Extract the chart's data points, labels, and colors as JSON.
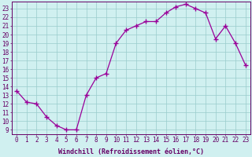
{
  "x": [
    0,
    1,
    2,
    3,
    4,
    5,
    6,
    7,
    8,
    9,
    10,
    11,
    12,
    13,
    14,
    15,
    16,
    17,
    18,
    19,
    20,
    21,
    22,
    23
  ],
  "y": [
    13.5,
    12.2,
    12.0,
    10.5,
    9.5,
    9.0,
    9.0,
    13.0,
    15.0,
    15.5,
    19.0,
    20.5,
    21.0,
    21.5,
    21.5,
    22.5,
    23.2,
    23.5,
    23.0,
    22.5,
    19.5,
    21.0,
    19.0,
    16.5
  ],
  "line_color": "#990099",
  "marker": "+",
  "marker_size": 4,
  "marker_color": "#990099",
  "bg_color": "#d0f0f0",
  "grid_color": "#99cccc",
  "xlabel": "Windchill (Refroidissement éolien,°C)",
  "xlim": [
    -0.5,
    23.5
  ],
  "ylim": [
    8.5,
    23.8
  ],
  "xticks": [
    0,
    1,
    2,
    3,
    4,
    5,
    6,
    7,
    8,
    9,
    10,
    11,
    12,
    13,
    14,
    15,
    16,
    17,
    18,
    19,
    20,
    21,
    22,
    23
  ],
  "yticks": [
    9,
    10,
    11,
    12,
    13,
    14,
    15,
    16,
    17,
    18,
    19,
    20,
    21,
    22,
    23
  ],
  "tick_fontsize": 5.5,
  "xlabel_fontsize": 6.0,
  "line_color_spine": "#660066",
  "tick_color": "#660066",
  "axis_color": "#660066",
  "lw": 0.9
}
